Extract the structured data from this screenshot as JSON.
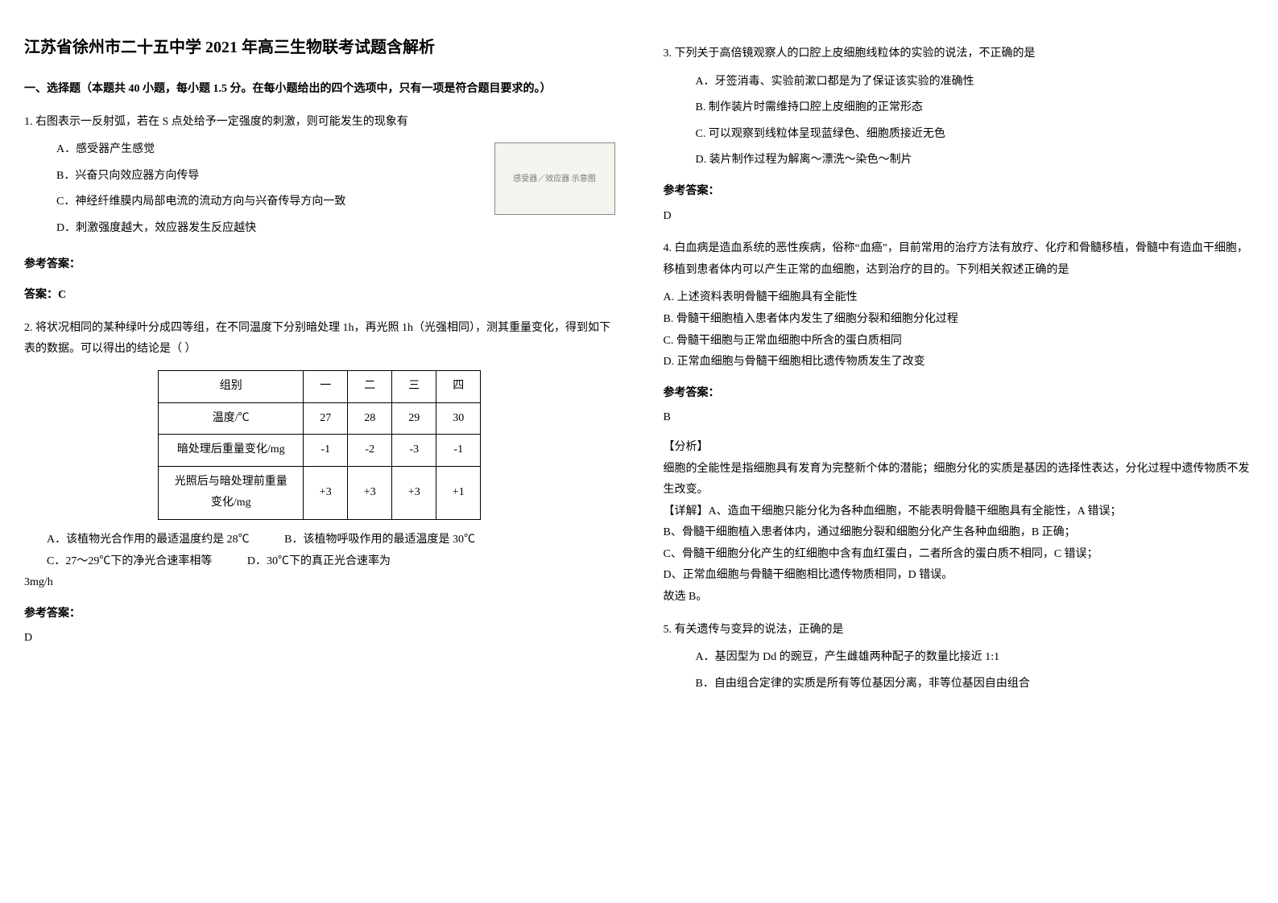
{
  "title": "江苏省徐州市二十五中学 2021 年高三生物联考试题含解析",
  "section1": "一、选择题（本题共 40 小题，每小题 1.5 分。在每小题给出的四个选项中，只有一项是符合题目要求的。）",
  "q1": {
    "stem": "1. 右图表示一反射弧，若在 S 点处给予一定强度的刺激，则可能发生的现象有",
    "opts": [
      "A．感受器产生感觉",
      "B．兴奋只向效应器方向传导",
      "C．神经纤维膜内局部电流的流动方向与兴奋传导方向一致",
      "D．刺激强度越大，效应器发生反应越快"
    ],
    "fig_label": "感受器／效应器 示意图",
    "ans_head": "参考答案：",
    "ans": "答案：C"
  },
  "q2": {
    "stem": "2. 将状况相同的某种绿叶分成四等组，在不同温度下分别暗处理 1h，再光照 1h（光强相同），测其重量变化，得到如下表的数据。可以得出的结论是（ ）",
    "table": {
      "rows": [
        [
          "组别",
          "一",
          "二",
          "三",
          "四"
        ],
        [
          "温度/℃",
          "27",
          "28",
          "29",
          "30"
        ],
        [
          "暗处理后重量变化/mg",
          "-1",
          "-2",
          "-3",
          "-1"
        ],
        [
          "光照后与暗处理前重量变化/mg",
          "+3",
          "+3",
          "+3",
          "+1"
        ]
      ]
    },
    "opts_row1_a": "A．该植物光合作用的最适温度约是 28℃",
    "opts_row1_b": "B．该植物呼吸作用的最适温度是 30℃",
    "opts_row2_a": "C．27～29℃下的净光合速率相等",
    "opts_row2_b": "D．30℃下的真正光合速率为",
    "tail": "3mg/h",
    "ans_head": "参考答案：",
    "ans": "D"
  },
  "q3": {
    "stem": "3. 下列关于高倍镜观察人的口腔上皮细胞线粒体的实验的说法，不正确的是",
    "opts": [
      "A．牙签消毒、实验前漱口都是为了保证该实验的准确性",
      "B. 制作装片时需维持口腔上皮细胞的正常形态",
      "C. 可以观察到线粒体呈现蓝绿色、细胞质接近无色",
      "D. 装片制作过程为解离～漂洗～染色～制片"
    ],
    "ans_head": "参考答案：",
    "ans": "D"
  },
  "q4": {
    "stem": "4. 白血病是造血系统的恶性疾病，俗称“血癌”，目前常用的治疗方法有放疗、化疗和骨髓移植，骨髓中有造血干细胞，移植到患者体内可以产生正常的血细胞，达到治疗的目的。下列相关叙述正确的是",
    "opts": [
      "A. 上述资料表明骨髓干细胞具有全能性",
      "B. 骨髓干细胞植入患者体内发生了细胞分裂和细胞分化过程",
      "C. 骨髓干细胞与正常血细胞中所含的蛋白质相同",
      "D. 正常血细胞与骨髓干细胞相比遗传物质发生了改变"
    ],
    "ans_head": "参考答案：",
    "ans": "B",
    "analysis_head": "【分析】",
    "analysis": "细胞的全能性是指细胞具有发育为完整新个体的潜能；细胞分化的实质是基因的选择性表达，分化过程中遗传物质不发生改变。",
    "detail_head": "【详解】",
    "details": [
      "A、造血干细胞只能分化为各种血细胞，不能表明骨髓干细胞具有全能性，A 错误；",
      "B、骨髓干细胞植入患者体内，通过细胞分裂和细胞分化产生各种血细胞，B 正确；",
      "C、骨髓干细胞分化产生的红细胞中含有血红蛋白，二者所含的蛋白质不相同，C 错误；",
      "D、正常血细胞与骨髓干细胞相比遗传物质相同，D 错误。"
    ],
    "conclude": "故选 B。"
  },
  "q5": {
    "stem": "5. 有关遗传与变异的说法，正确的是",
    "opts": [
      "A．基因型为 Dd 的豌豆，产生雌雄两种配子的数量比接近 1:1",
      "B．自由组合定律的实质是所有等位基因分离，非等位基因自由组合"
    ]
  }
}
